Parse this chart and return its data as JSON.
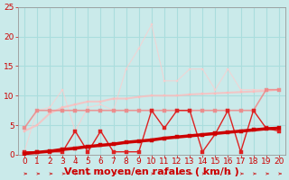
{
  "title": "",
  "xlabel": "Vent moyen/en rafales ( km/h )",
  "bg_color": "#caeaea",
  "grid_color": "#aadddd",
  "xlim": [
    -0.5,
    20.5
  ],
  "ylim": [
    0,
    25
  ],
  "xticks": [
    0,
    1,
    2,
    3,
    4,
    5,
    6,
    7,
    8,
    9,
    10,
    11,
    12,
    13,
    14,
    15,
    16,
    17,
    18,
    19,
    20
  ],
  "yticks": [
    0,
    5,
    10,
    15,
    20,
    25
  ],
  "lines": [
    {
      "x": [
        0,
        1,
        2,
        3,
        4,
        5,
        6,
        7,
        8,
        9,
        10,
        11,
        12,
        13,
        14,
        15,
        16,
        17,
        18,
        19,
        20
      ],
      "y": [
        0.2,
        0.4,
        0.6,
        0.9,
        1.1,
        1.4,
        1.6,
        1.8,
        2.1,
        2.3,
        2.5,
        2.8,
        3.0,
        3.2,
        3.4,
        3.6,
        3.8,
        4.0,
        4.2,
        4.4,
        4.5
      ],
      "color": "#cc0000",
      "lw": 2.5,
      "marker": "s",
      "ms": 2.5,
      "alpha": 1.0,
      "zorder": 5
    },
    {
      "x": [
        0,
        1,
        2,
        3,
        4,
        5,
        6,
        7,
        8,
        9,
        10,
        11,
        12,
        13,
        14,
        15,
        16,
        17,
        18,
        19,
        20
      ],
      "y": [
        0.5,
        0.5,
        0.5,
        0.5,
        4.0,
        0.5,
        4.0,
        0.5,
        0.5,
        0.5,
        7.5,
        4.5,
        7.5,
        7.5,
        0.5,
        3.5,
        7.5,
        0.5,
        7.5,
        4.5,
        4.0
      ],
      "color": "#dd2222",
      "lw": 1.0,
      "marker": "s",
      "ms": 2.5,
      "alpha": 1.0,
      "zorder": 4
    },
    {
      "x": [
        0,
        1,
        2,
        3,
        4,
        5,
        6,
        7,
        8,
        9,
        10,
        11,
        12,
        13,
        14,
        15,
        16,
        17,
        18,
        19,
        20
      ],
      "y": [
        4.5,
        7.5,
        7.5,
        7.5,
        7.5,
        7.5,
        7.5,
        7.5,
        7.5,
        7.5,
        7.5,
        7.5,
        7.5,
        7.5,
        7.5,
        7.5,
        7.5,
        7.5,
        7.5,
        11.0,
        11.0
      ],
      "color": "#ee8888",
      "lw": 1.2,
      "marker": "s",
      "ms": 2.5,
      "alpha": 0.85,
      "zorder": 3
    },
    {
      "x": [
        0,
        1,
        2,
        3,
        4,
        5,
        6,
        7,
        8,
        9,
        10,
        11,
        12,
        13,
        14,
        15,
        16,
        17,
        18,
        19,
        20
      ],
      "y": [
        4.0,
        5.0,
        7.0,
        8.0,
        8.5,
        9.0,
        9.0,
        9.5,
        9.5,
        9.8,
        10.0,
        10.0,
        10.0,
        10.2,
        10.3,
        10.4,
        10.5,
        10.6,
        10.7,
        10.8,
        11.0
      ],
      "color": "#ffbbbb",
      "lw": 1.5,
      "marker": "s",
      "ms": 2.0,
      "alpha": 0.75,
      "zorder": 2
    },
    {
      "x": [
        0,
        1,
        2,
        3,
        4,
        5,
        6,
        7,
        8,
        9,
        10,
        11,
        12,
        13,
        14,
        15,
        16,
        17,
        18,
        19,
        20
      ],
      "y": [
        0.5,
        7.5,
        8.0,
        11.0,
        4.0,
        8.0,
        8.5,
        7.5,
        14.5,
        18.0,
        22.0,
        12.5,
        12.5,
        14.5,
        14.5,
        11.0,
        14.5,
        11.0,
        11.0,
        11.0,
        11.0
      ],
      "color": "#ffcccc",
      "lw": 0.8,
      "marker": "s",
      "ms": 2.0,
      "alpha": 0.7,
      "zorder": 1
    }
  ],
  "xlabel_color": "#cc0000",
  "xlabel_fontsize": 8,
  "tick_color": "#cc0000",
  "tick_fontsize": 6.5,
  "arrow_color": "#cc0000"
}
